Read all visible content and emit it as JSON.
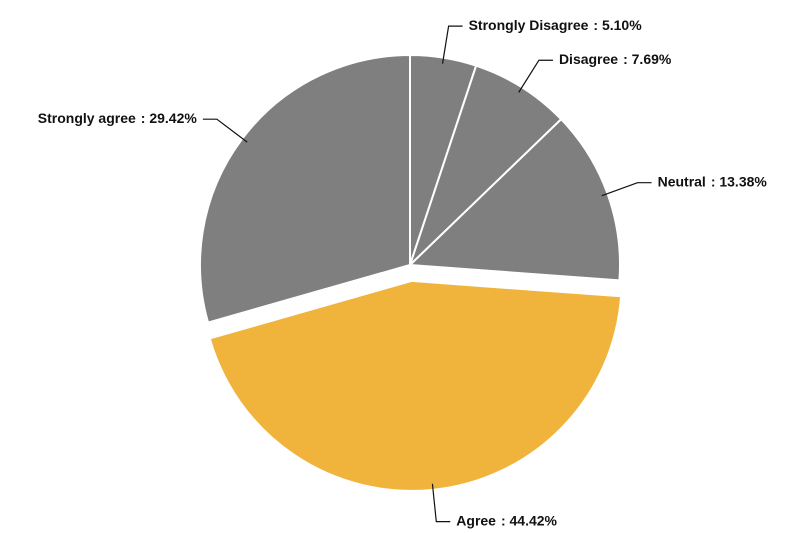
{
  "chart_data": {
    "type": "pie",
    "categories": [
      "Strongly Disagree",
      "Disagree",
      "Neutral",
      "Agree",
      "Strongly agree"
    ],
    "values": [
      5.1,
      7.69,
      13.38,
      44.42,
      29.42
    ],
    "value_labels": [
      ": 5.10%",
      ": 7.69%",
      ": 13.38%",
      ": 44.42%",
      ": 29.42%"
    ],
    "colors": [
      "#7f7f7f",
      "#7f7f7f",
      "#7f7f7f",
      "#f0b43c",
      "#7f7f7f"
    ],
    "explode": [
      false,
      false,
      false,
      true,
      false
    ]
  }
}
